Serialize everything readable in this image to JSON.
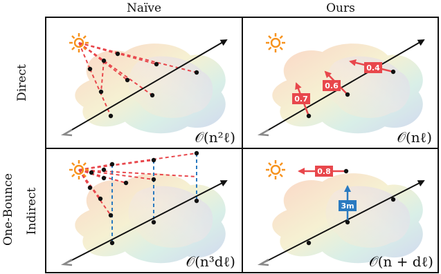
{
  "headers": {
    "naive": "Naïve",
    "ours": "Ours"
  },
  "rows": {
    "direct": "Direct",
    "indirect_line1": "One-Bounce",
    "indirect_line2": "Indirect"
  },
  "complexity": {
    "naive_direct": "𝒪(n²ℓ)",
    "ours_direct": "𝒪(nℓ)",
    "naive_indirect": "𝒪(n³dℓ)",
    "ours_indirect": "𝒪(n + dℓ)"
  },
  "labels": {
    "ours_direct": [
      "0.7",
      "0.6",
      "0.4"
    ],
    "ours_indirect_red": "0.8",
    "ours_indirect_blue": "3m"
  },
  "colors": {
    "sun": "#f7931e",
    "red": "#e8474c",
    "blue": "#2a7ac0",
    "ray": "#222222"
  }
}
